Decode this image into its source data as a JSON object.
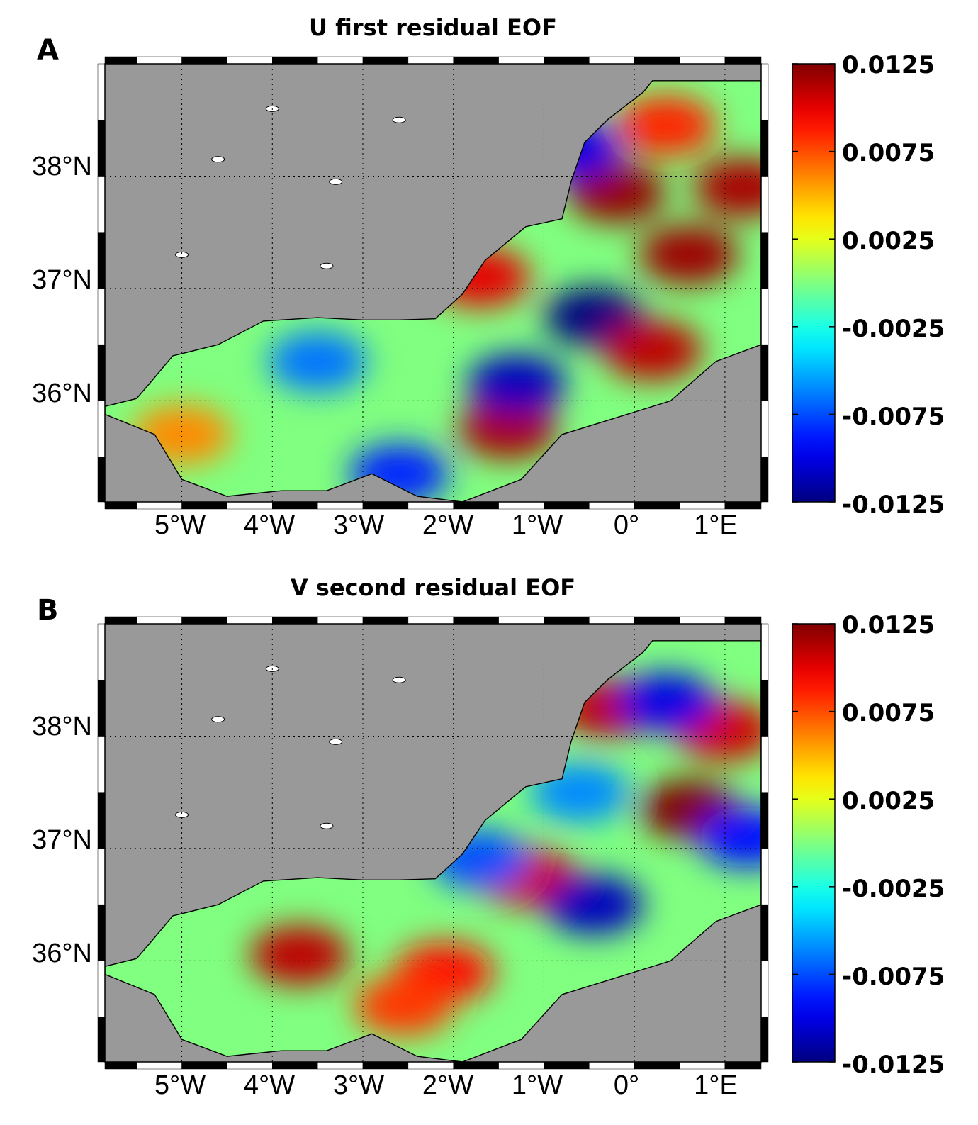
{
  "chart_data": [
    {
      "type": "heatmap",
      "panel_label": "A",
      "title": "U first residual EOF",
      "xticks": [
        "5°W",
        "4°W",
        "3°W",
        "2°W",
        "1°W",
        "0°",
        "1°E"
      ],
      "yticks": [
        "38°N",
        "37°N",
        "36°N"
      ],
      "xlim": [
        -5.85,
        1.4
      ],
      "ylim": [
        35.1,
        39.0
      ],
      "grid": true,
      "colorbar": {
        "ticks": [
          "0.0125",
          "0.0075",
          "0.0025",
          "-0.0025",
          "-0.0075",
          "-0.0125"
        ],
        "range": [
          -0.0125,
          0.0125
        ],
        "colormap": "jet"
      },
      "features": [
        {
          "lon": -0.45,
          "lat": 36.75,
          "value": -0.0125
        },
        {
          "lon": 0.6,
          "lat": 37.3,
          "value": 0.0118
        },
        {
          "lon": -0.2,
          "lat": 37.85,
          "value": 0.012
        },
        {
          "lon": 1.2,
          "lat": 37.9,
          "value": 0.0115
        },
        {
          "lon": 0.2,
          "lat": 36.45,
          "value": 0.011
        },
        {
          "lon": -1.4,
          "lat": 35.75,
          "value": 0.0115
        },
        {
          "lon": -1.7,
          "lat": 37.1,
          "value": 0.01
        },
        {
          "lon": -1.3,
          "lat": 36.15,
          "value": -0.011
        },
        {
          "lon": -3.5,
          "lat": 36.35,
          "value": -0.0065
        },
        {
          "lon": 0.35,
          "lat": 38.45,
          "value": 0.0085
        },
        {
          "lon": -0.7,
          "lat": 38.25,
          "value": -0.01
        },
        {
          "lon": -2.6,
          "lat": 35.35,
          "value": -0.0085
        },
        {
          "lon": -5.0,
          "lat": 35.7,
          "value": 0.006
        }
      ]
    },
    {
      "type": "heatmap",
      "panel_label": "B",
      "title": "V second residual EOF",
      "xticks": [
        "5°W",
        "4°W",
        "3°W",
        "2°W",
        "1°W",
        "0°",
        "1°E"
      ],
      "yticks": [
        "38°N",
        "37°N",
        "36°N"
      ],
      "xlim": [
        -5.85,
        1.4
      ],
      "ylim": [
        35.1,
        39.0
      ],
      "grid": true,
      "colorbar": {
        "ticks": [
          "0.0125",
          "0.0075",
          "0.0025",
          "-0.0025",
          "-0.0075",
          "-0.0125"
        ],
        "range": [
          -0.0125,
          0.0125
        ],
        "colormap": "jet"
      },
      "features": [
        {
          "lon": 0.6,
          "lat": 37.35,
          "value": 0.0125
        },
        {
          "lon": -3.7,
          "lat": 36.05,
          "value": 0.011
        },
        {
          "lon": -1.2,
          "lat": 36.75,
          "value": 0.0105
        },
        {
          "lon": -2.1,
          "lat": 35.9,
          "value": 0.009
        },
        {
          "lon": -2.55,
          "lat": 35.6,
          "value": 0.008
        },
        {
          "lon": -0.3,
          "lat": 38.25,
          "value": 0.011
        },
        {
          "lon": 1.0,
          "lat": 38.05,
          "value": 0.0105
        },
        {
          "lon": -0.45,
          "lat": 36.5,
          "value": -0.011
        },
        {
          "lon": 0.35,
          "lat": 38.3,
          "value": -0.01
        },
        {
          "lon": 1.25,
          "lat": 37.1,
          "value": -0.009
        },
        {
          "lon": -1.7,
          "lat": 36.9,
          "value": -0.0075
        },
        {
          "lon": -0.6,
          "lat": 37.5,
          "value": -0.006
        }
      ]
    }
  ]
}
